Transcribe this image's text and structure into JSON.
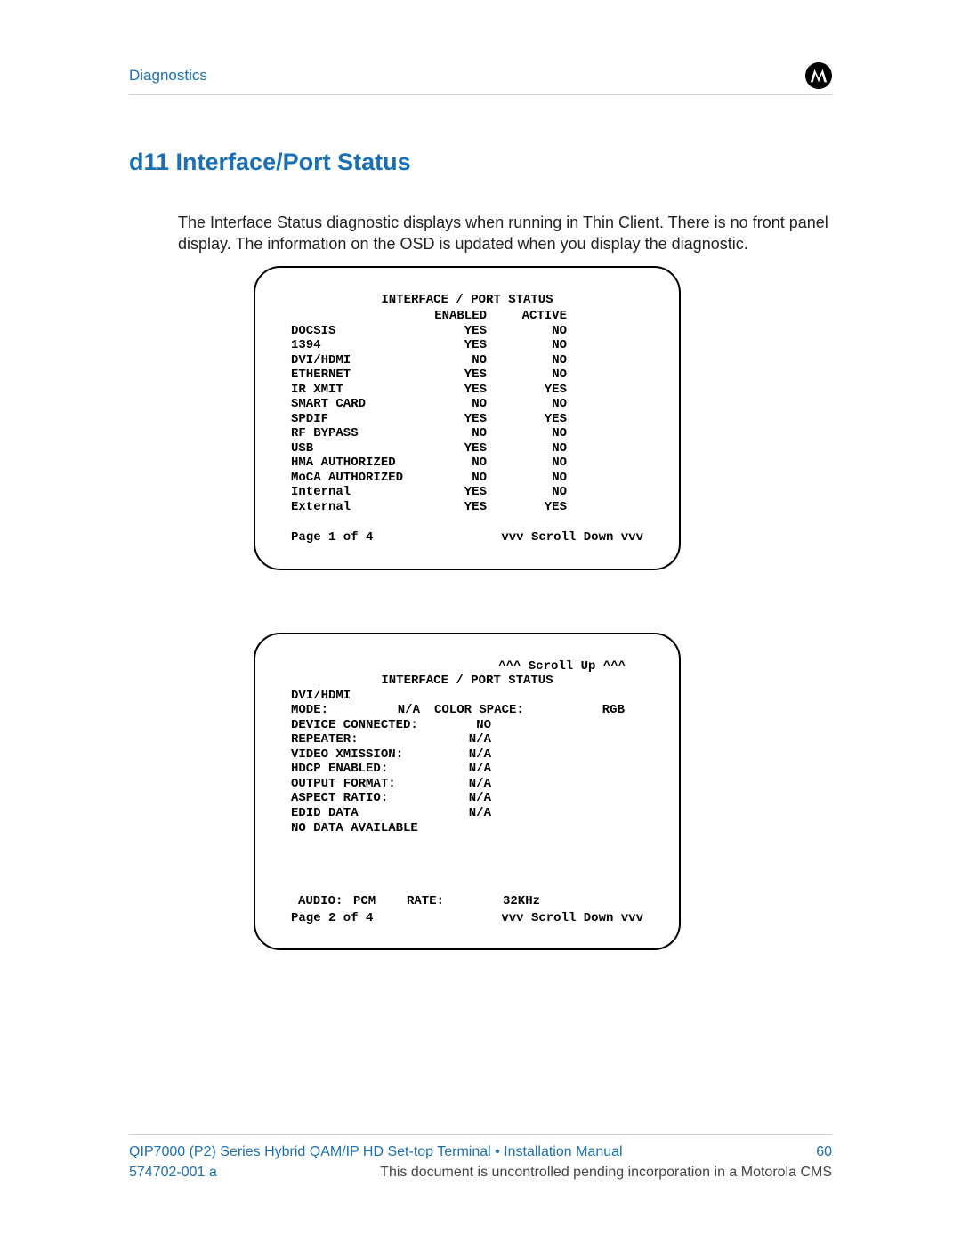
{
  "colors": {
    "accent": "#1a6fb5",
    "text": "#222222",
    "rule": "#d0d0d0",
    "panel_border": "#000000",
    "mono_text": "#000000",
    "footer_gray": "#444444",
    "background": "#ffffff"
  },
  "header": {
    "section": "Diagnostics",
    "logo": "motorola-logo"
  },
  "section_title": "d11 Interface/Port Status",
  "intro_text": "The Interface Status diagnostic displays when running in Thin Client. There is no front panel display. The information on the OSD is updated when you display the diagnostic.",
  "panel1": {
    "title": "INTERFACE / PORT STATUS",
    "col_headers": [
      "",
      "ENABLED",
      "ACTIVE"
    ],
    "rows": [
      {
        "label": "DOCSIS",
        "enabled": "YES",
        "active": "NO"
      },
      {
        "label": "1394",
        "enabled": "YES",
        "active": "NO"
      },
      {
        "label": "DVI/HDMI",
        "enabled": "NO",
        "active": "NO"
      },
      {
        "label": "ETHERNET",
        "enabled": "YES",
        "active": "NO"
      },
      {
        "label": "IR XMIT",
        "enabled": "YES",
        "active": "YES"
      },
      {
        "label": "SMART CARD",
        "enabled": "NO",
        "active": "NO"
      },
      {
        "label": "SPDIF",
        "enabled": "YES",
        "active": "YES"
      },
      {
        "label": "RF BYPASS",
        "enabled": "NO",
        "active": "NO"
      },
      {
        "label": "USB",
        "enabled": "YES",
        "active": "NO"
      },
      {
        "label": "HMA AUTHORIZED",
        "enabled": "NO",
        "active": "NO"
      },
      {
        "label": "MoCA AUTHORIZED",
        "enabled": "NO",
        "active": "NO"
      },
      {
        "label": "   Internal",
        "enabled": "YES",
        "active": "NO"
      },
      {
        "label": "   External",
        "enabled": "YES",
        "active": "YES"
      }
    ],
    "page_label": "Page 1 of 4",
    "scroll_down": "vvv Scroll Down vvv"
  },
  "panel2": {
    "scroll_up": "^^^ Scroll Up ^^^",
    "title": "INTERFACE / PORT STATUS",
    "subhead": "DVI/HDMI",
    "mode_label": "MODE:",
    "mode_value": "N/A",
    "color_space_label": "COLOR SPACE:",
    "color_space_value": "RGB",
    "rows": [
      {
        "label": " DEVICE CONNECTED:",
        "value": "NO"
      },
      {
        "label": " REPEATER:",
        "value": "N/A"
      },
      {
        "label": " VIDEO XMISSION:",
        "value": "N/A"
      },
      {
        "label": " HDCP ENABLED:",
        "value": "N/A"
      },
      {
        "label": " OUTPUT FORMAT:",
        "value": "N/A"
      },
      {
        "label": " ASPECT RATIO:",
        "value": "N/A"
      },
      {
        "label": "EDID DATA",
        "value": "N/A"
      },
      {
        "label": " NO DATA AVAILABLE",
        "value": ""
      }
    ],
    "audio_label": "AUDIO:",
    "audio_value": "PCM",
    "rate_label": "RATE:",
    "rate_value": "32KHz",
    "page_label": "Page 2 of 4",
    "scroll_down": "vvv Scroll Down vvv"
  },
  "footer": {
    "line1_left": "QIP7000 (P2) Series Hybrid QAM/IP HD Set-top Terminal • Installation Manual",
    "line1_right": "60",
    "line2_left": "574702-001 a",
    "line2_right": "This document is uncontrolled pending incorporation in a Motorola CMS"
  }
}
